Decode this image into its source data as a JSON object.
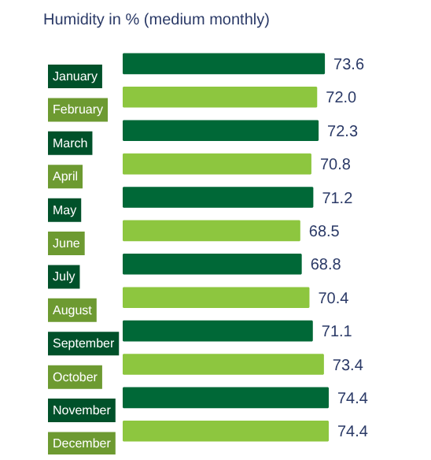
{
  "chart_data": {
    "type": "bar",
    "orientation": "horizontal",
    "title": "Humidity in % (medium monthly)",
    "categories": [
      "January",
      "February",
      "March",
      "April",
      "May",
      "June",
      "July",
      "August",
      "September",
      "October",
      "November",
      "December"
    ],
    "values": [
      73.6,
      72.0,
      72.3,
      70.8,
      71.2,
      68.5,
      68.8,
      70.4,
      71.1,
      73.4,
      74.4,
      74.4
    ],
    "value_labels": [
      "73.6",
      "72.0",
      "72.3",
      "70.8",
      "71.2",
      "68.5",
      "68.8",
      "70.4",
      "71.1",
      "73.4",
      "74.4",
      "74.4"
    ],
    "colors": [
      "#006837",
      "#8dc63f",
      "#006837",
      "#8dc63f",
      "#006837",
      "#8dc63f",
      "#006837",
      "#8dc63f",
      "#006837",
      "#8dc63f",
      "#006837",
      "#8dc63f"
    ],
    "xlim": [
      32,
      74.4
    ],
    "tick_labels": false
  }
}
